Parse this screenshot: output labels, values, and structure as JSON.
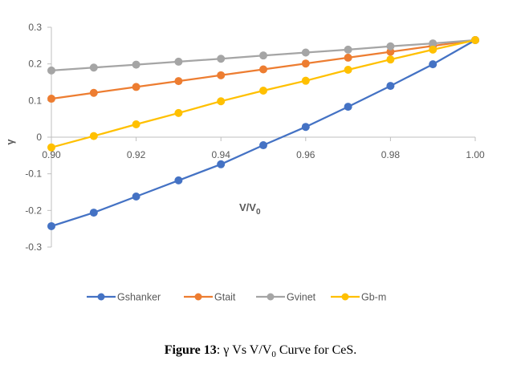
{
  "chart_data": {
    "type": "line",
    "title": "",
    "xlabel": "V/V",
    "xlabel_sub": "0",
    "ylabel": "γ",
    "xlim": [
      0.9,
      1.0
    ],
    "ylim": [
      -0.3,
      0.3
    ],
    "x_ticks": [
      "0.90",
      "0.92",
      "0.94",
      "0.96",
      "0.98",
      "1.00"
    ],
    "y_ticks": [
      "0.3",
      "0.2",
      "0.1",
      "0",
      "-0.1",
      "-0.2",
      "-0.3"
    ],
    "grid": false,
    "legend_position": "bottom",
    "x": [
      0.9,
      0.91,
      0.92,
      0.93,
      0.94,
      0.95,
      0.96,
      0.97,
      0.98,
      0.99,
      1.0
    ],
    "series": [
      {
        "name": "Gshanker",
        "color": "#4472C4",
        "values": [
          -0.243,
          -0.206,
          -0.162,
          -0.118,
          -0.074,
          -0.022,
          0.028,
          0.083,
          0.14,
          0.199,
          0.265
        ]
      },
      {
        "name": "Gtait",
        "color": "#ED7D31",
        "values": [
          0.105,
          0.121,
          0.137,
          0.153,
          0.169,
          0.185,
          0.201,
          0.217,
          0.233,
          0.249,
          0.265
        ]
      },
      {
        "name": "Gvinet",
        "color": "#A5A5A5",
        "values": [
          0.182,
          0.19,
          0.198,
          0.206,
          0.214,
          0.223,
          0.231,
          0.239,
          0.248,
          0.256,
          0.265
        ]
      },
      {
        "name": "Gb-m",
        "color": "#FFC000",
        "values": [
          -0.028,
          0.003,
          0.035,
          0.066,
          0.098,
          0.127,
          0.154,
          0.184,
          0.212,
          0.239,
          0.265
        ]
      }
    ]
  },
  "caption": {
    "label": "Figure 13",
    "text_pre": ": γ Vs V/V",
    "text_sub": "0",
    "text_post": " Curve for CeS."
  }
}
